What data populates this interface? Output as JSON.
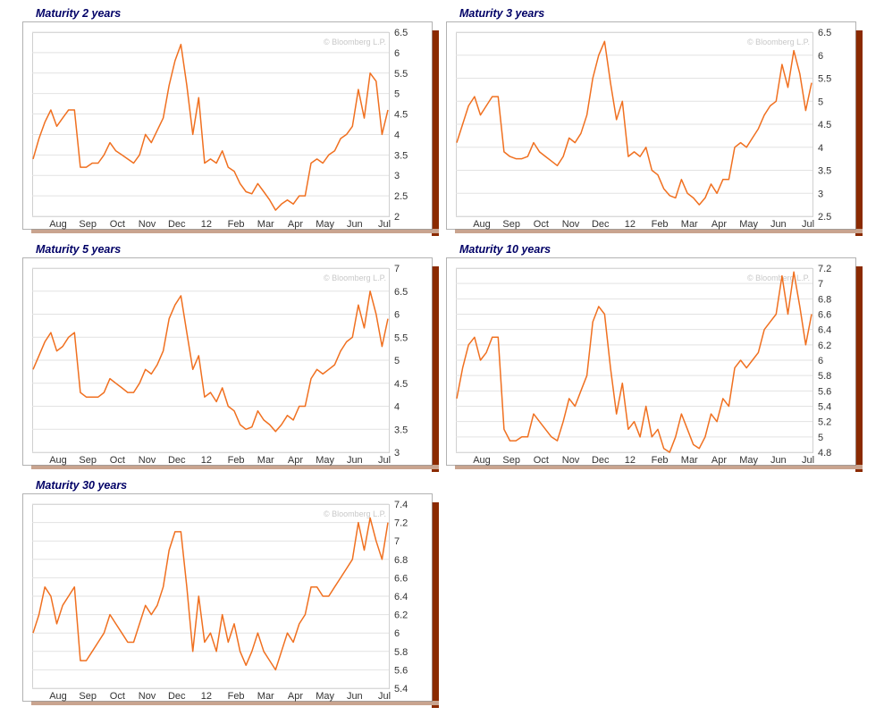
{
  "watermark": "© Bloomberg L.P.",
  "colors": {
    "line": "#f07020",
    "title": "#000066",
    "shadow": "#8b2a00"
  },
  "chart_data": [
    {
      "type": "line",
      "title": "Maturity 2 years",
      "x_ticks": [
        "Aug",
        "Sep",
        "Oct",
        "Nov",
        "Dec",
        "12",
        "Feb",
        "Mar",
        "Apr",
        "May",
        "Jun",
        "Jul"
      ],
      "y_ticks": [
        2,
        2.5,
        3,
        3.5,
        4,
        4.5,
        5,
        5.5,
        6,
        6.5
      ],
      "ylim": [
        2,
        6.5
      ],
      "grid": true,
      "series": [
        {
          "values": [
            3.4,
            3.9,
            4.3,
            4.6,
            4.2,
            4.4,
            4.6,
            4.6,
            3.2,
            3.2,
            3.3,
            3.3,
            3.5,
            3.8,
            3.6,
            3.5,
            3.4,
            3.3,
            3.5,
            4.0,
            3.8,
            4.1,
            4.4,
            5.2,
            5.8,
            6.2,
            5.2,
            4.0,
            4.9,
            3.3,
            3.4,
            3.3,
            3.6,
            3.2,
            3.1,
            2.8,
            2.6,
            2.55,
            2.8,
            2.6,
            2.4,
            2.15,
            2.3,
            2.4,
            2.3,
            2.5,
            2.5,
            3.3,
            3.4,
            3.3,
            3.5,
            3.6,
            3.9,
            4.0,
            4.2,
            5.1,
            4.4,
            5.5,
            5.3,
            4.0,
            4.6
          ]
        }
      ]
    },
    {
      "type": "line",
      "title": "Maturity 3 years",
      "x_ticks": [
        "Aug",
        "Sep",
        "Oct",
        "Nov",
        "Dec",
        "12",
        "Feb",
        "Mar",
        "Apr",
        "May",
        "Jun",
        "Jul"
      ],
      "y_ticks": [
        2.5,
        3,
        3.5,
        4,
        4.5,
        5,
        5.5,
        6,
        6.5
      ],
      "ylim": [
        2.5,
        6.5
      ],
      "grid": true,
      "series": [
        {
          "values": [
            4.1,
            4.5,
            4.9,
            5.1,
            4.7,
            4.9,
            5.1,
            5.1,
            3.9,
            3.8,
            3.75,
            3.75,
            3.8,
            4.1,
            3.9,
            3.8,
            3.7,
            3.6,
            3.8,
            4.2,
            4.1,
            4.3,
            4.7,
            5.5,
            6.0,
            6.3,
            5.4,
            4.6,
            5.0,
            3.8,
            3.9,
            3.8,
            4.0,
            3.5,
            3.4,
            3.1,
            2.95,
            2.9,
            3.3,
            3.0,
            2.9,
            2.75,
            2.9,
            3.2,
            3.0,
            3.3,
            3.3,
            4.0,
            4.1,
            4.0,
            4.2,
            4.4,
            4.7,
            4.9,
            5.0,
            5.8,
            5.3,
            6.1,
            5.6,
            4.8,
            5.4
          ]
        }
      ]
    },
    {
      "type": "line",
      "title": "Maturity 5 years",
      "x_ticks": [
        "Aug",
        "Sep",
        "Oct",
        "Nov",
        "Dec",
        "12",
        "Feb",
        "Mar",
        "Apr",
        "May",
        "Jun",
        "Jul"
      ],
      "y_ticks": [
        3,
        3.5,
        4,
        4.5,
        5,
        5.5,
        6,
        6.5,
        7
      ],
      "ylim": [
        3,
        7
      ],
      "grid": true,
      "series": [
        {
          "values": [
            4.8,
            5.1,
            5.4,
            5.6,
            5.2,
            5.3,
            5.5,
            5.6,
            4.3,
            4.2,
            4.2,
            4.2,
            4.3,
            4.6,
            4.5,
            4.4,
            4.3,
            4.3,
            4.5,
            4.8,
            4.7,
            4.9,
            5.2,
            5.9,
            6.2,
            6.4,
            5.6,
            4.8,
            5.1,
            4.2,
            4.3,
            4.1,
            4.4,
            4.0,
            3.9,
            3.6,
            3.5,
            3.55,
            3.9,
            3.7,
            3.6,
            3.45,
            3.6,
            3.8,
            3.7,
            4.0,
            4.0,
            4.6,
            4.8,
            4.7,
            4.8,
            4.9,
            5.2,
            5.4,
            5.5,
            6.2,
            5.7,
            6.5,
            6.0,
            5.3,
            5.9
          ]
        }
      ]
    },
    {
      "type": "line",
      "title": "Maturity 10 years",
      "x_ticks": [
        "Aug",
        "Sep",
        "Oct",
        "Nov",
        "Dec",
        "12",
        "Feb",
        "Mar",
        "Apr",
        "May",
        "Jun",
        "Jul"
      ],
      "y_ticks": [
        4.8,
        5,
        5.2,
        5.4,
        5.6,
        5.8,
        6,
        6.2,
        6.4,
        6.6,
        6.8,
        7,
        7.2
      ],
      "ylim": [
        4.8,
        7.2
      ],
      "grid": true,
      "series": [
        {
          "values": [
            5.5,
            5.9,
            6.2,
            6.3,
            6.0,
            6.1,
            6.3,
            6.3,
            5.1,
            4.95,
            4.95,
            5.0,
            5.0,
            5.3,
            5.2,
            5.1,
            5.0,
            4.95,
            5.2,
            5.5,
            5.4,
            5.6,
            5.8,
            6.5,
            6.7,
            6.6,
            5.9,
            5.3,
            5.7,
            5.1,
            5.2,
            5.0,
            5.4,
            5.0,
            5.1,
            4.85,
            4.8,
            5.0,
            5.3,
            5.1,
            4.9,
            4.85,
            5.0,
            5.3,
            5.2,
            5.5,
            5.4,
            5.9,
            6.0,
            5.9,
            6.0,
            6.1,
            6.4,
            6.5,
            6.6,
            7.1,
            6.6,
            7.15,
            6.7,
            6.2,
            6.6
          ]
        }
      ]
    },
    {
      "type": "line",
      "title": "Maturity 30 years",
      "x_ticks": [
        "Aug",
        "Sep",
        "Oct",
        "Nov",
        "Dec",
        "12",
        "Feb",
        "Mar",
        "Apr",
        "May",
        "Jun",
        "Jul"
      ],
      "y_ticks": [
        5.4,
        5.6,
        5.8,
        6,
        6.2,
        6.4,
        6.6,
        6.8,
        7,
        7.2,
        7.4
      ],
      "ylim": [
        5.4,
        7.4
      ],
      "grid": true,
      "series": [
        {
          "values": [
            6.0,
            6.2,
            6.5,
            6.4,
            6.1,
            6.3,
            6.4,
            6.5,
            5.7,
            5.7,
            5.8,
            5.9,
            6.0,
            6.2,
            6.1,
            6.0,
            5.9,
            5.9,
            6.1,
            6.3,
            6.2,
            6.3,
            6.5,
            6.9,
            7.1,
            7.1,
            6.5,
            5.8,
            6.4,
            5.9,
            6.0,
            5.8,
            6.2,
            5.9,
            6.1,
            5.8,
            5.65,
            5.8,
            6.0,
            5.8,
            5.7,
            5.6,
            5.8,
            6.0,
            5.9,
            6.1,
            6.2,
            6.5,
            6.5,
            6.4,
            6.4,
            6.5,
            6.6,
            6.7,
            6.8,
            7.2,
            6.9,
            7.25,
            7.0,
            6.8,
            7.2
          ]
        }
      ]
    }
  ]
}
